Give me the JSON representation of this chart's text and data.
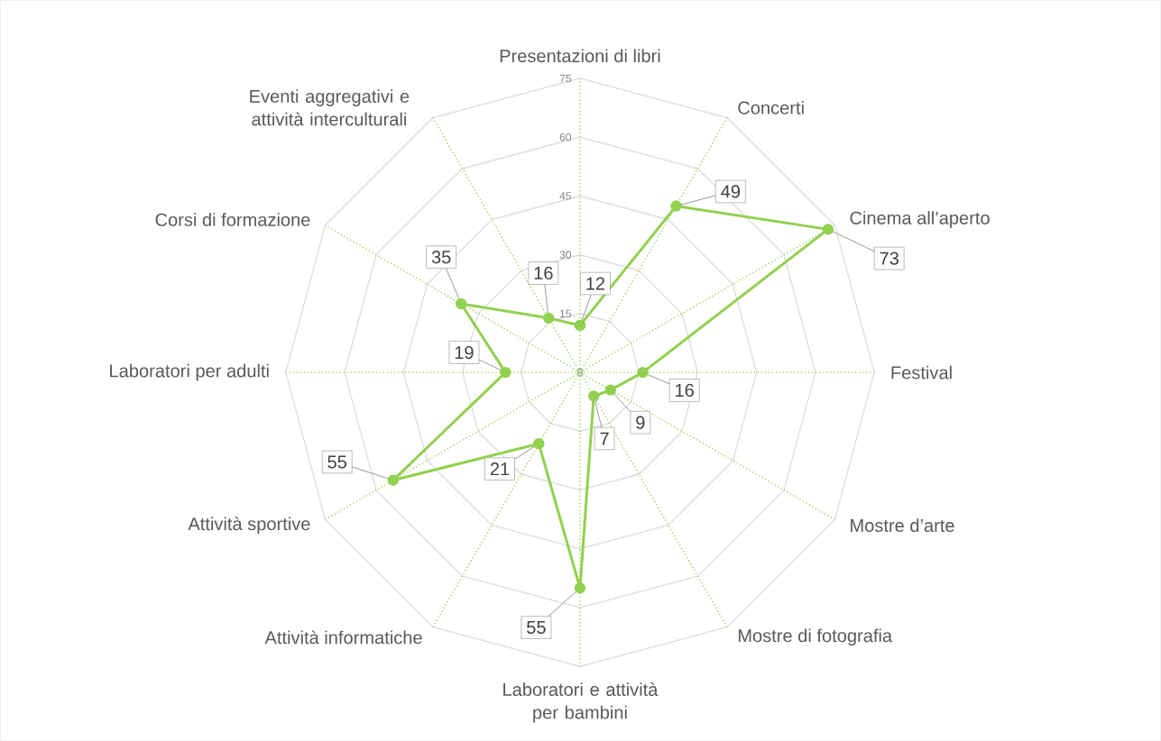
{
  "chart_data": {
    "type": "radar",
    "categories": [
      "Presentazioni di libri",
      "Concerti",
      "Cinema all’aperto",
      "Festival",
      "Mostre d’arte",
      "Mostre di fotografia",
      "Laboratori e attività per bambini",
      "Attività informatiche",
      "Attività sportive",
      "Laboratori per adulti",
      "Corsi di formazione",
      "Eventi aggregativi e attività interculturali"
    ],
    "series": [
      {
        "color": "#92d050",
        "values": [
          12,
          49,
          73,
          16,
          9,
          7,
          55,
          21,
          55,
          19,
          35,
          16
        ]
      }
    ],
    "ylim": [
      0,
      75
    ],
    "yticks": [
      0,
      15,
      30,
      45,
      60,
      75
    ],
    "grid": true,
    "data_labels": true,
    "marker": "circle"
  }
}
